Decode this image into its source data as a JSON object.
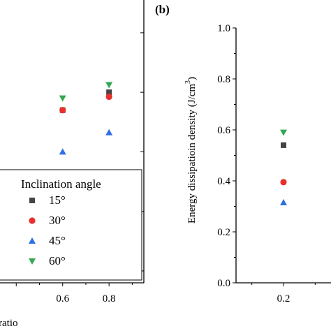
{
  "chart_data": [
    {
      "panel": "",
      "type": "scatter",
      "xlabel": "ratio",
      "ylabel": "",
      "xlim": [
        0.33,
        0.95
      ],
      "ylim": [
        0.16,
        1.11
      ],
      "x_ticks": [
        "0.6",
        "0.8"
      ],
      "legend": {
        "title": "Inclination angle",
        "placement": "bottom-left",
        "items": [
          "15°",
          "30°",
          "45°",
          "60°"
        ]
      },
      "series": [
        {
          "name": "15°",
          "color": "#444444",
          "marker": "square",
          "points": [
            {
              "x": 0.6,
              "y": 0.74
            },
            {
              "x": 0.8,
              "y": 0.8
            }
          ]
        },
        {
          "name": "30°",
          "color": "#e8302c",
          "marker": "circle",
          "points": [
            {
              "x": 0.6,
              "y": 0.74
            },
            {
              "x": 0.8,
              "y": 0.785
            }
          ]
        },
        {
          "name": "45°",
          "color": "#2f6fe4",
          "marker": "triangle-up",
          "points": [
            {
              "x": 0.6,
              "y": 0.6
            },
            {
              "x": 0.8,
              "y": 0.665
            }
          ]
        },
        {
          "name": "60°",
          "color": "#33a853",
          "marker": "triangle-down",
          "points": [
            {
              "x": 0.6,
              "y": 0.78
            },
            {
              "x": 0.8,
              "y": 0.825
            }
          ]
        }
      ]
    },
    {
      "panel": "(b)",
      "type": "scatter",
      "xlabel": "",
      "ylabel": "Energy dissipatioin density (J/cm³)",
      "ylabel_main": "Energy dissipatioin density (J/cm",
      "ylabel_sup": "3",
      "ylabel_tail": ")",
      "xlim": [
        0.05,
        0.35
      ],
      "ylim": [
        0.0,
        1.0
      ],
      "y_ticks": [
        "0.0",
        "0.2",
        "0.4",
        "0.6",
        "0.8",
        "1.0"
      ],
      "x_ticks": [
        "0.2"
      ],
      "series": [
        {
          "name": "15°",
          "color": "#444444",
          "marker": "square",
          "points": [
            {
              "x": 0.2,
              "y": 0.54
            }
          ]
        },
        {
          "name": "30°",
          "color": "#e8302c",
          "marker": "circle",
          "points": [
            {
              "x": 0.2,
              "y": 0.395
            }
          ]
        },
        {
          "name": "45°",
          "color": "#2f6fe4",
          "marker": "triangle-up",
          "points": [
            {
              "x": 0.2,
              "y": 0.315
            }
          ]
        },
        {
          "name": "60°",
          "color": "#33a853",
          "marker": "triangle-down",
          "points": [
            {
              "x": 0.2,
              "y": 0.59
            }
          ]
        }
      ]
    }
  ]
}
